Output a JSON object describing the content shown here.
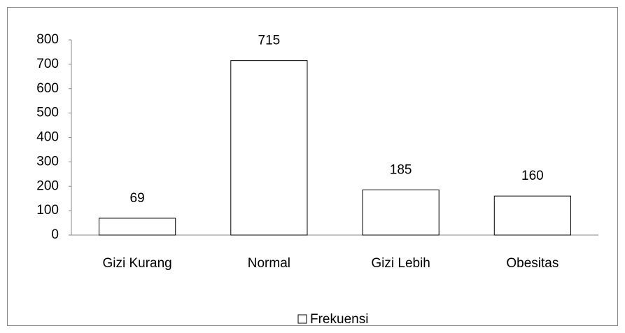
{
  "chart_data": {
    "type": "bar",
    "categories": [
      "Gizi Kurang",
      "Normal",
      "Gizi Lebih",
      "Obesitas"
    ],
    "series": [
      {
        "name": "Frekuensi",
        "color": "#ffffff",
        "values": [
          69,
          715,
          185,
          160
        ]
      }
    ],
    "ylim": [
      0,
      800
    ],
    "yticks": [
      0,
      100,
      200,
      300,
      400,
      500,
      600,
      700,
      800
    ],
    "grid": false,
    "legend": "bottom"
  }
}
